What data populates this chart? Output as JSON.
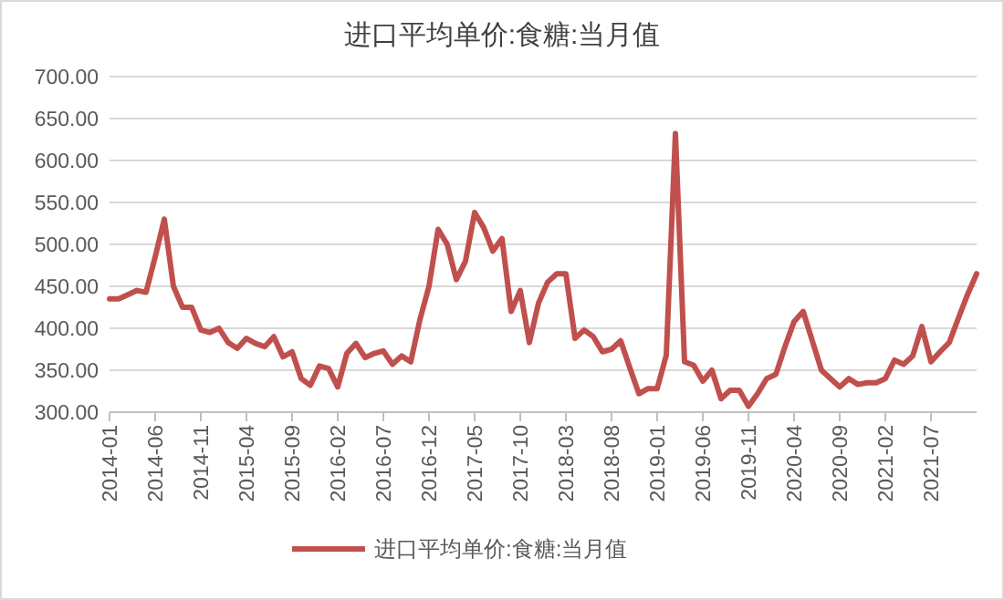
{
  "chart_data": {
    "type": "line",
    "title": "进口平均单价:食糖:当月值",
    "categories": [
      "2014-01",
      null,
      null,
      null,
      null,
      "2014-06",
      null,
      null,
      null,
      null,
      "2014-11",
      null,
      null,
      null,
      null,
      "2015-04",
      null,
      null,
      null,
      null,
      "2015-09",
      null,
      null,
      null,
      null,
      "2016-02",
      null,
      null,
      null,
      null,
      "2016-07",
      null,
      null,
      null,
      null,
      "2016-12",
      null,
      null,
      null,
      null,
      "2017-05",
      null,
      null,
      null,
      null,
      "2017-10",
      null,
      null,
      null,
      null,
      "2018-03",
      null,
      null,
      null,
      null,
      "2018-08",
      null,
      null,
      null,
      null,
      "2019-01",
      null,
      null,
      null,
      null,
      "2019-06",
      null,
      null,
      null,
      null,
      "2019-11",
      null,
      null,
      null,
      null,
      "2020-04",
      null,
      null,
      null,
      null,
      "2020-09",
      null,
      null,
      null,
      null,
      "2021-02",
      null,
      null,
      null,
      null,
      "2021-07",
      null,
      null,
      null,
      null,
      null
    ],
    "series": [
      {
        "name": "进口平均单价:食糖:当月值",
        "color": "#c0504d",
        "values": [
          435,
          435,
          440,
          445,
          443,
          485,
          530,
          450,
          425,
          425,
          398,
          395,
          400,
          383,
          376,
          388,
          382,
          378,
          390,
          366,
          372,
          340,
          332,
          355,
          352,
          330,
          370,
          382,
          365,
          370,
          373,
          357,
          367,
          360,
          410,
          450,
          518,
          500,
          458,
          480,
          538,
          520,
          492,
          507,
          420,
          445,
          383,
          430,
          455,
          465,
          465,
          388,
          398,
          390,
          372,
          375,
          385,
          353,
          322,
          328,
          328,
          368,
          632,
          360,
          356,
          337,
          350,
          316,
          326,
          326,
          307,
          322,
          340,
          345,
          378,
          408,
          420,
          385,
          350,
          340,
          330,
          340,
          333,
          335,
          335,
          340,
          362,
          357,
          367,
          402,
          360,
          372,
          383,
          412,
          440,
          465
        ]
      }
    ],
    "ylim": [
      300,
      700
    ],
    "yticks": [
      {
        "value": 300,
        "label": "300.00"
      },
      {
        "value": 350,
        "label": "350.00"
      },
      {
        "value": 400,
        "label": "400.00"
      },
      {
        "value": 450,
        "label": "450.00"
      },
      {
        "value": 500,
        "label": "500.00"
      },
      {
        "value": 550,
        "label": "550.00"
      },
      {
        "value": 600,
        "label": "600.00"
      },
      {
        "value": 650,
        "label": "650.00"
      },
      {
        "value": 700,
        "label": "700.00"
      }
    ],
    "grid": "y",
    "legend": "bottom",
    "line_style": "solid"
  }
}
